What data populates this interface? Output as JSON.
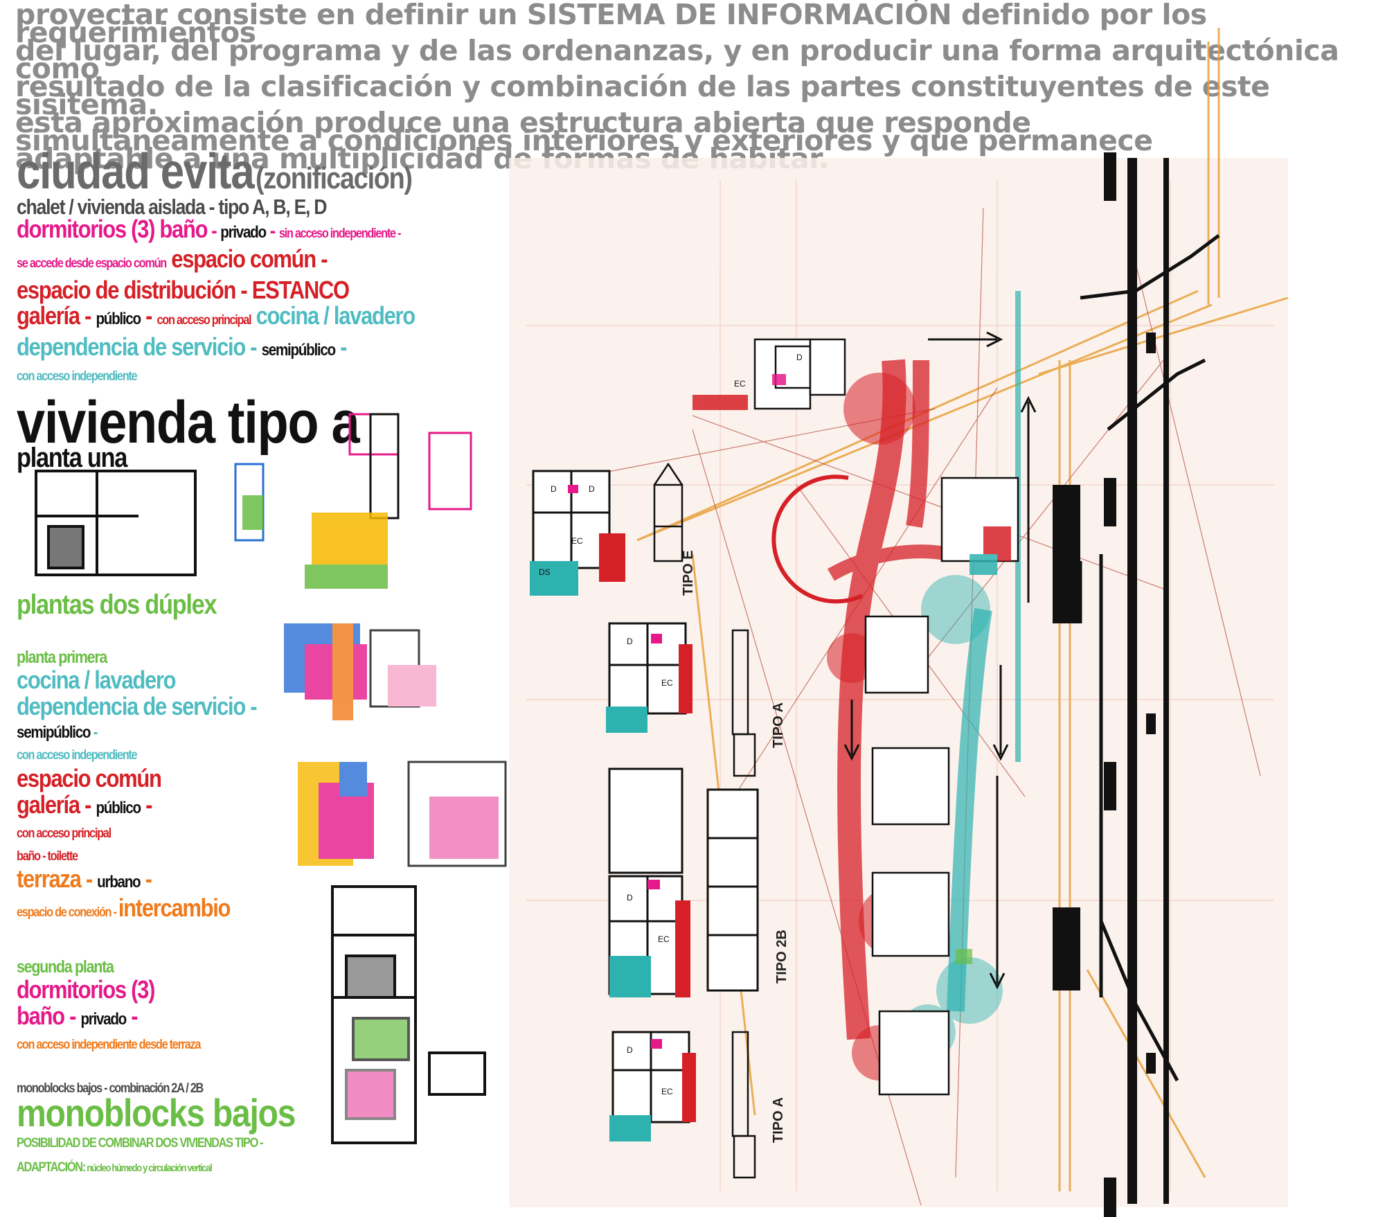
{
  "intro_text": "proyectar consiste en definir un SISTEMA DE INFORMACIÓN definido por los requerimientos\ndel lugar, del programa y de las ordenanzas, y en producir una forma arquitectónica como\nresultado de la clasificación y combinación de las partes constituyentes de este sisitema.\nesta aproximación produce una estructura abierta que responde\nsimultaneamente a condiciones interiores y exteriores y que permanece\nadaptable a una multiplicidad de formas de habitar.",
  "heading": {
    "title": "ciudad evita",
    "subtitle": "(zonificación)",
    "types": "chalet / vivienda aislada - tipo A, B, E, D"
  },
  "legend_a": {
    "l1": [
      "dormitorios (3) baño",
      " - ",
      "privado",
      " - ",
      "sin acceso independiente -"
    ],
    "l2": [
      "se accede desde espacio común",
      " ",
      "espacio común -"
    ],
    "l3": [
      "espacio de distribución - ESTANCO"
    ],
    "l4": [
      "galería",
      " - ",
      "público",
      " - ",
      "con acceso principal",
      " ",
      "cocina / lavadero"
    ],
    "l5": [
      "dependencia de servicio",
      " - ",
      "semipúblico",
      " -"
    ],
    "l6": [
      "con acceso independiente"
    ]
  },
  "tipo_a": {
    "title": "vivienda tipo a",
    "subtitle": "planta una"
  },
  "plantas_dos": "plantas dos dúplex",
  "planta_primera": {
    "title": "planta primera",
    "cocina": "cocina / lavadero",
    "dependencia": "dependencia de servicio -",
    "semi": "semipúblico",
    "semi_dash": " -",
    "acceso": "con acceso independiente",
    "espacio": "espacio común",
    "galeria": "galería",
    "galeria_dash": " - ",
    "publico": "público",
    "publico_dash": " -",
    "acceso_principal": "con acceso principal",
    "bano": "baño - toilette",
    "terraza": "terraza",
    "terraza_dash": " - ",
    "urbano": "urbano",
    "urbano_dash": " -",
    "conexion": "espacio de conexión - ",
    "intercambio": "intercambio"
  },
  "segunda_planta": {
    "title": "segunda planta",
    "dorm": "dormitorios (3)",
    "bano": "baño",
    "bano_dash": " - ",
    "privado": "privado",
    "privado_dash": " -",
    "acceso": "con acceso independiente desde terraza"
  },
  "monoblocks": {
    "small": "monoblocks bajos - combinación 2A / 2B",
    "title": "monoblocks bajos",
    "posibilidad": "POSIBILIDAD DE COMBINAR DOS VIVIENDAS TIPO -",
    "adaptacion": "ADAPTACIÓN:",
    "adaptacion_rest": " núcleo húmedo y circulación vertical"
  },
  "plan_labels": {
    "tipo_e": "TIPO E",
    "tipo_a1": "TIPO A",
    "tipo_2b": "TIPO 2B",
    "tipo_a2": "TIPO A"
  },
  "room_codes": {
    "d": "D",
    "ec": "EC",
    "ds": "DS"
  },
  "colors": {
    "pink": "#e5198a",
    "red": "#d62027",
    "teal": "#4fbcc2",
    "green": "#6abd45",
    "orange": "#f07a1a",
    "yellow": "#f5b800",
    "gray": "#8c8c8c",
    "black": "#111111"
  }
}
